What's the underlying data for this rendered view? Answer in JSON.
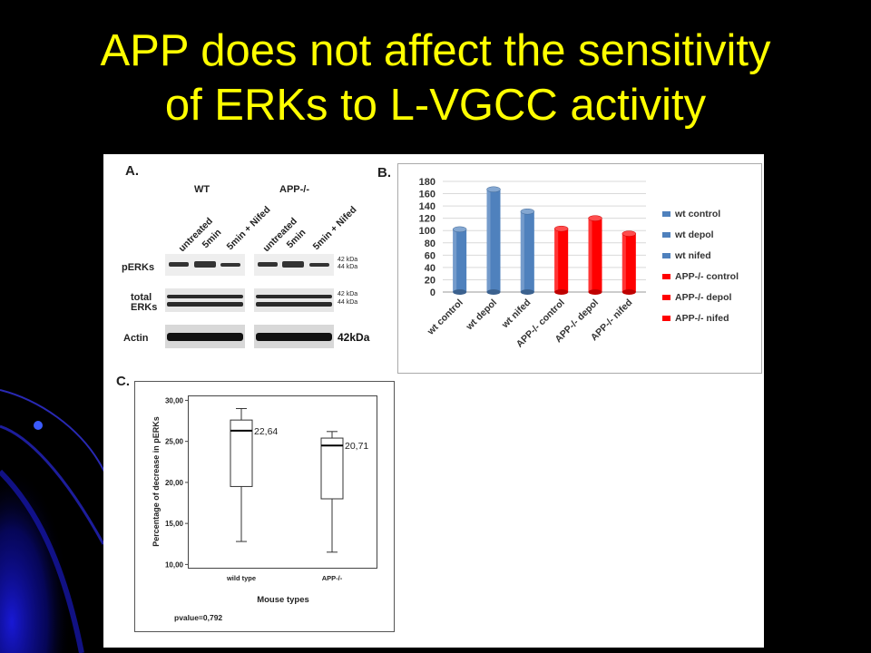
{
  "slide": {
    "title_lines": [
      "APP does not affect the sensitivity",
      "of ERKs to L-VGCC activity"
    ]
  },
  "panel_a": {
    "letter": "A.",
    "groups": [
      "WT",
      "APP-/-"
    ],
    "lanes": [
      "untreated",
      "5min",
      "5min + Nifed",
      "untreated",
      "5min",
      "5min + Nifed"
    ],
    "row_labels": [
      "pERKs",
      "total",
      "ERKs",
      "Actin"
    ],
    "kda_perk": [
      "42 kDa",
      "44 kDa"
    ],
    "kda_total": [
      "42 kDa",
      "44 kDa"
    ],
    "kda_actin": "42kDa"
  },
  "panel_b": {
    "letter": "B."
  },
  "panel_c": {
    "letter": "C.",
    "pvalue_text": "pvalue=0,792"
  },
  "colors": {
    "title": "#ffff00",
    "wt_bar": "#4f81bd",
    "app_bar": "#ff0000",
    "background": "#000000"
  },
  "chart_data": [
    {
      "type": "bar",
      "id": "panel_b_chart",
      "categories": [
        "wt control",
        "wt depol",
        "wt nifed",
        "APP-/- control",
        "APP-/- depol",
        "APP-/- nifed"
      ],
      "values": [
        102,
        167,
        131,
        103,
        120,
        95
      ],
      "colors": [
        "#4f81bd",
        "#4f81bd",
        "#4f81bd",
        "#ff0000",
        "#ff0000",
        "#ff0000"
      ],
      "series": [
        {
          "name": "wt control",
          "color": "#4f81bd"
        },
        {
          "name": "wt depol",
          "color": "#4f81bd"
        },
        {
          "name": "wt nifed",
          "color": "#4f81bd"
        },
        {
          "name": "APP-/- control",
          "color": "#ff0000"
        },
        {
          "name": "APP-/- depol",
          "color": "#ff0000"
        },
        {
          "name": "APP-/- nifed",
          "color": "#ff0000"
        }
      ],
      "style": "3d-cylinder",
      "ylim": [
        0,
        180
      ],
      "yticks": [
        0,
        20,
        40,
        60,
        80,
        100,
        120,
        140,
        160,
        180
      ],
      "grid": true,
      "legend": "right"
    },
    {
      "type": "boxplot",
      "id": "panel_c_chart",
      "categories": [
        "wild type",
        "APP-/-"
      ],
      "boxes": [
        {
          "min": 12.8,
          "q1": 19.5,
          "median": 26.3,
          "q3": 27.6,
          "max": 29.0,
          "label": "22,64"
        },
        {
          "min": 11.5,
          "q1": 18.0,
          "median": 24.5,
          "q3": 25.4,
          "max": 26.2,
          "label": "20,71"
        }
      ],
      "ylim": [
        9.6,
        30.6
      ],
      "yticks": [
        "10,00",
        "15,00",
        "20,00",
        "25,00",
        "30,00"
      ],
      "ytick_values": [
        10,
        15,
        20,
        25,
        30
      ],
      "xlabel": "Mouse types",
      "ylabel": "Percentage of decrease in pERKs",
      "grid": false
    }
  ]
}
